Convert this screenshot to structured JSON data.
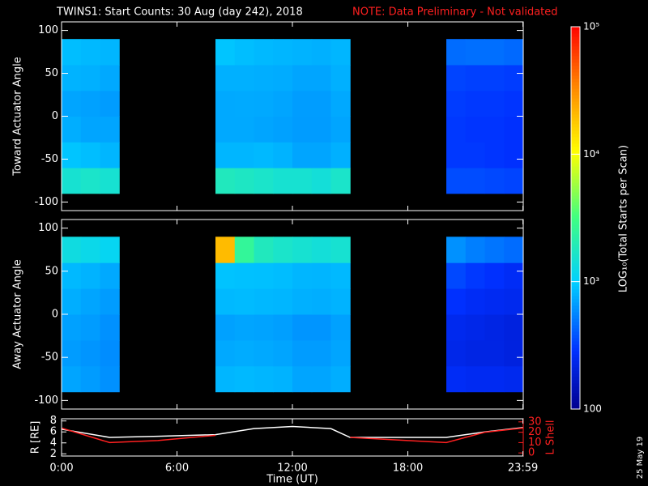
{
  "chart_data": [
    {
      "type": "heatmap",
      "ylabel": "Toward Actuator Angle",
      "x_bins": [
        0,
        1,
        2,
        3,
        4,
        5,
        6,
        7,
        8,
        9,
        10,
        11,
        12,
        13,
        14,
        15,
        16,
        17,
        18,
        19,
        20,
        21,
        22,
        23,
        24
      ],
      "y_bins": [
        -90,
        -60,
        -30,
        0,
        30,
        60,
        90
      ],
      "ylim": [
        -110,
        110
      ],
      "yticks": [
        -100,
        -50,
        0,
        50,
        100
      ],
      "values": [
        [
          1500,
          1600,
          1500,
          null,
          null,
          null,
          null,
          null,
          1800,
          1700,
          1600,
          1500,
          1500,
          1400,
          1600,
          null,
          null,
          null,
          null,
          null,
          350,
          350,
          340,
          330
        ],
        [
          900,
          850,
          800,
          null,
          null,
          null,
          null,
          null,
          800,
          800,
          820,
          780,
          700,
          700,
          760,
          null,
          null,
          null,
          null,
          null,
          300,
          300,
          290,
          280
        ],
        [
          750,
          700,
          700,
          null,
          null,
          null,
          null,
          null,
          720,
          720,
          700,
          680,
          650,
          650,
          700,
          null,
          null,
          null,
          null,
          null,
          300,
          290,
          290,
          280
        ],
        [
          700,
          680,
          650,
          null,
          null,
          null,
          null,
          null,
          720,
          730,
          720,
          700,
          660,
          660,
          720,
          null,
          null,
          null,
          null,
          null,
          310,
          300,
          300,
          290
        ],
        [
          780,
          760,
          720,
          null,
          null,
          null,
          null,
          null,
          760,
          760,
          750,
          740,
          700,
          700,
          760,
          null,
          null,
          null,
          null,
          null,
          330,
          320,
          320,
          310
        ],
        [
          850,
          820,
          800,
          null,
          null,
          null,
          null,
          null,
          900,
          850,
          820,
          800,
          780,
          760,
          800,
          null,
          null,
          null,
          null,
          null,
          450,
          460,
          460,
          440
        ]
      ]
    },
    {
      "type": "heatmap",
      "ylabel": "Away Actuator Angle",
      "x_bins": [
        0,
        1,
        2,
        3,
        4,
        5,
        6,
        7,
        8,
        9,
        10,
        11,
        12,
        13,
        14,
        15,
        16,
        17,
        18,
        19,
        20,
        21,
        22,
        23,
        24
      ],
      "y_bins": [
        -90,
        -60,
        -30,
        0,
        30,
        60,
        90
      ],
      "ylim": [
        -110,
        110
      ],
      "yticks": [
        -100,
        -50,
        0,
        50,
        100
      ],
      "values": [
        [
          700,
          650,
          600,
          null,
          null,
          null,
          null,
          null,
          800,
          820,
          800,
          780,
          700,
          700,
          750,
          null,
          null,
          null,
          null,
          null,
          260,
          250,
          250,
          240
        ],
        [
          650,
          620,
          580,
          null,
          null,
          null,
          null,
          null,
          720,
          740,
          720,
          700,
          650,
          650,
          700,
          null,
          null,
          null,
          null,
          null,
          230,
          220,
          220,
          210
        ],
        [
          680,
          650,
          600,
          null,
          null,
          null,
          null,
          null,
          680,
          700,
          690,
          670,
          620,
          620,
          680,
          null,
          null,
          null,
          null,
          null,
          240,
          230,
          220,
          210
        ],
        [
          750,
          700,
          650,
          null,
          null,
          null,
          null,
          null,
          820,
          830,
          810,
          800,
          760,
          750,
          780,
          null,
          null,
          null,
          null,
          null,
          280,
          260,
          250,
          240
        ],
        [
          820,
          780,
          720,
          null,
          null,
          null,
          null,
          null,
          880,
          870,
          860,
          840,
          800,
          790,
          820,
          null,
          null,
          null,
          null,
          null,
          340,
          300,
          280,
          260
        ],
        [
          1300,
          1200,
          1100,
          null,
          null,
          null,
          null,
          null,
          20000,
          2500,
          1800,
          1600,
          1500,
          1400,
          1500,
          null,
          null,
          null,
          null,
          null,
          600,
          520,
          480,
          450
        ]
      ]
    },
    {
      "type": "line",
      "xlabel": "Time (UT)",
      "ylabel": "R [RE]",
      "y2label": "L Shell",
      "x": [
        0,
        2.5,
        5,
        8,
        10,
        12,
        14,
        15,
        18,
        20,
        22,
        23.983
      ],
      "xlim": [
        0,
        24
      ],
      "xticks": [
        {
          "value": 0,
          "label": "0:00"
        },
        {
          "value": 6,
          "label": "6:00"
        },
        {
          "value": 12,
          "label": "12:00"
        },
        {
          "value": 18,
          "label": "18:00"
        },
        {
          "value": 23.983,
          "label": "23:59"
        }
      ],
      "ylim": [
        1.6,
        8.4
      ],
      "yticks": [
        2,
        4,
        6,
        8
      ],
      "y2lim": [
        -3,
        33
      ],
      "y2ticks": [
        0,
        10,
        20,
        30
      ],
      "series": [
        {
          "name": "R",
          "color": "#ffffff",
          "values": [
            6.5,
            5,
            5.2,
            5.5,
            6.6,
            7,
            6.6,
            5,
            5,
            5,
            6,
            6.8
          ]
        },
        {
          "name": "L Shell",
          "color": "#ff2020",
          "axis": "y2",
          "values": [
            24,
            10,
            12,
            17,
            null,
            null,
            null,
            15,
            12,
            10,
            20,
            24
          ]
        }
      ]
    }
  ],
  "header": {
    "title": "TWINS1: Start Counts: 30 Aug (day 242), 2018",
    "note": "NOTE: Data Preliminary - Not validated"
  },
  "colorbar": {
    "label": "LOG₁₀(Total Starts per Scan)",
    "lim": [
      100,
      100000
    ],
    "ticks": [
      100,
      {
        "value": 1000,
        "label": "10³"
      },
      {
        "value": 10000,
        "label": "10⁴"
      },
      {
        "value": 100000,
        "label": "10⁵"
      }
    ]
  },
  "footer": {
    "date": "25 May 19"
  }
}
